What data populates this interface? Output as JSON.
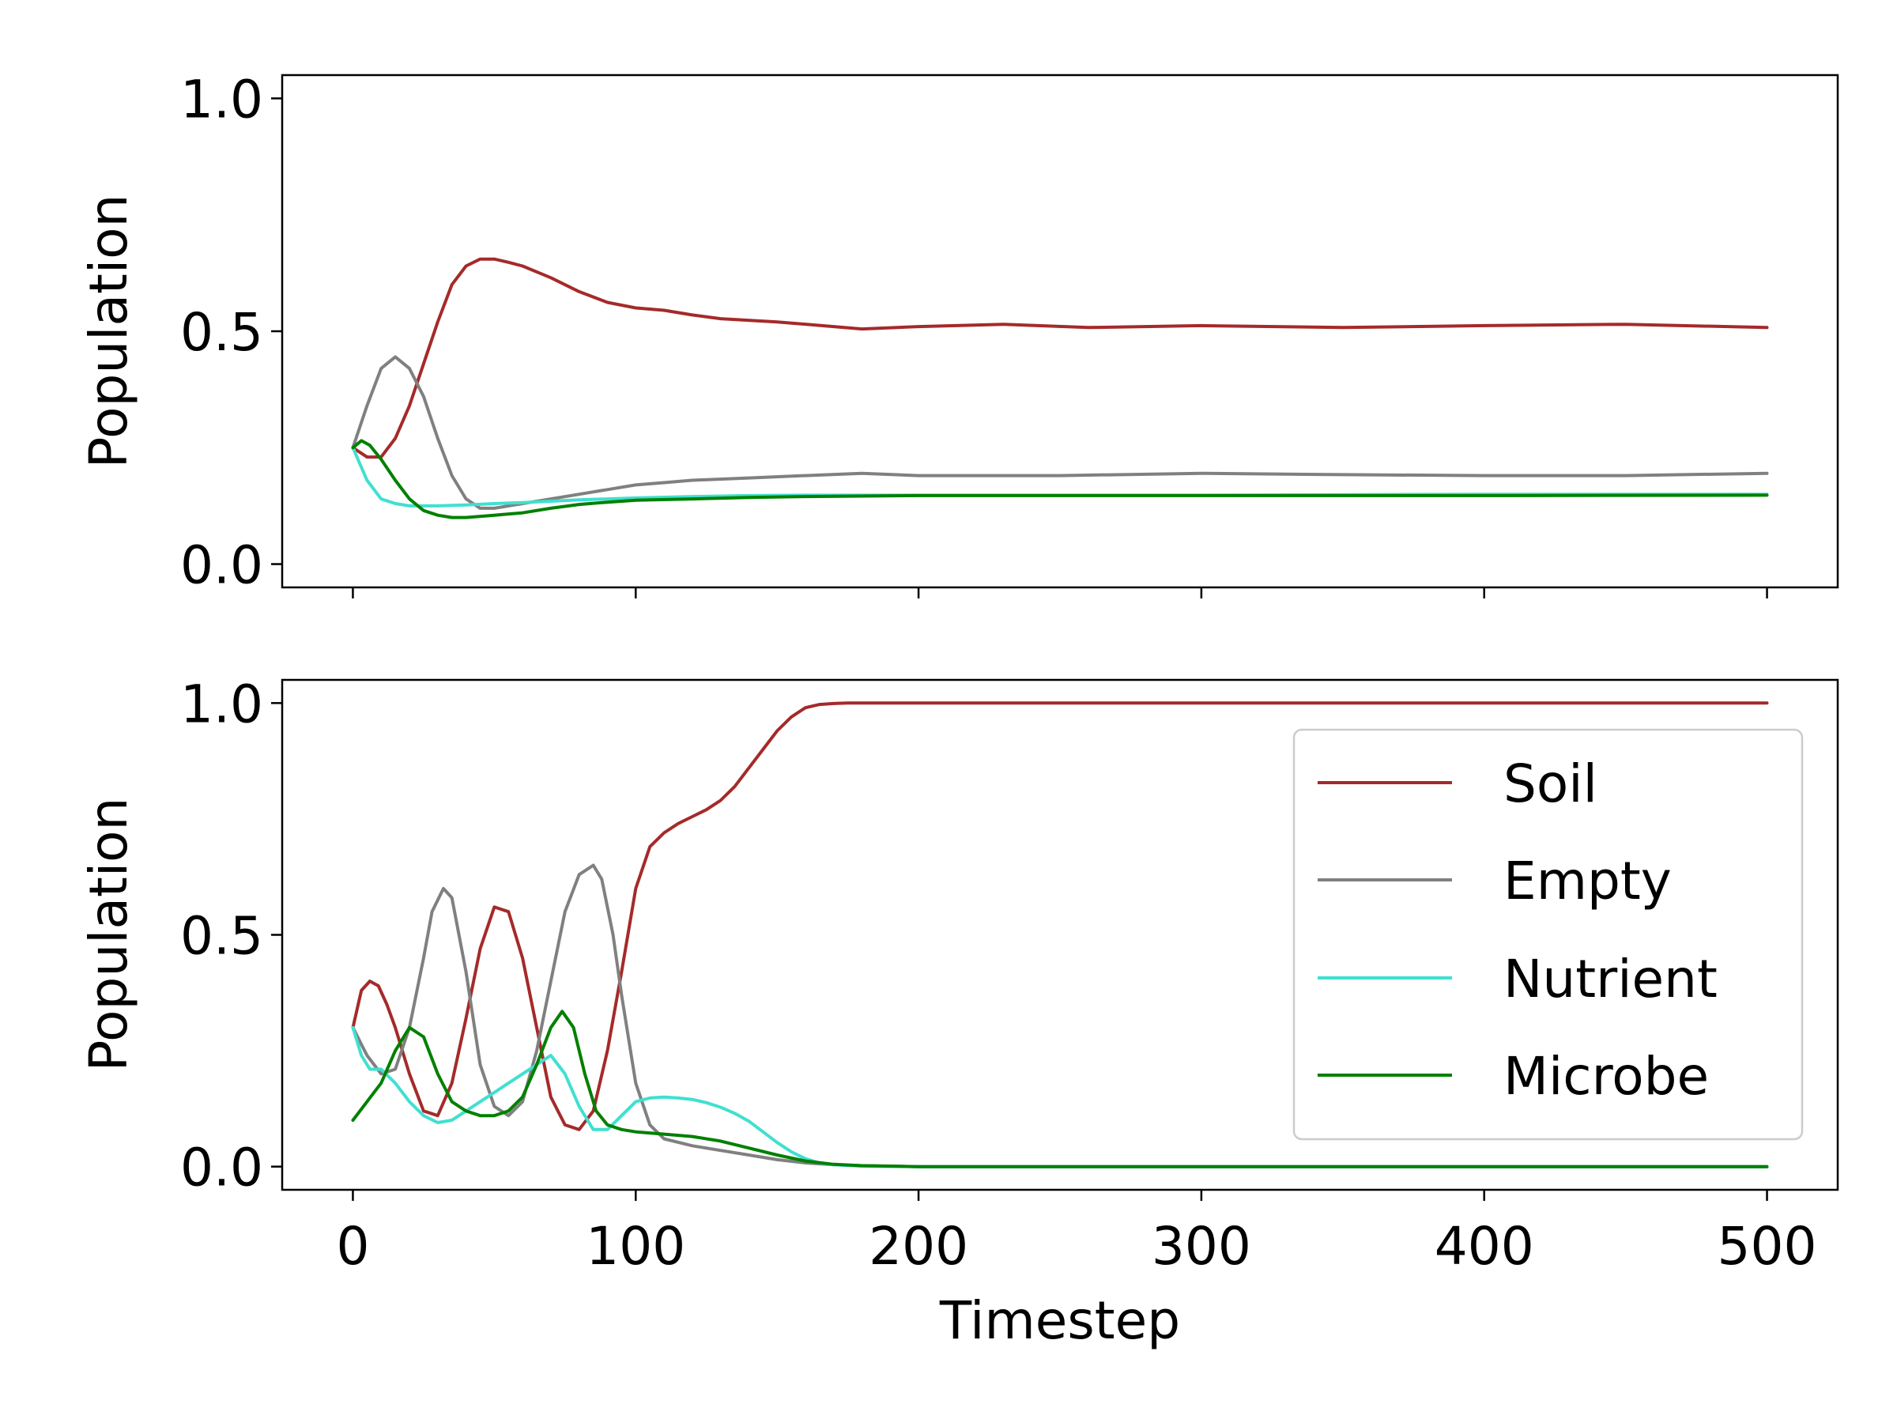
{
  "chart_data": [
    {
      "type": "line",
      "panel": "top",
      "title": "",
      "xlabel": "",
      "ylabel": "Population",
      "xlim": [
        -25,
        525
      ],
      "ylim": [
        -0.05,
        1.05
      ],
      "xticks": [
        0,
        100,
        200,
        300,
        400,
        500
      ],
      "xtick_labels_shown": false,
      "yticks": [
        0.0,
        0.5,
        1.0
      ],
      "ytick_labels": [
        "0.0",
        "0.5",
        "1.0"
      ],
      "grid": false,
      "legend": null,
      "series": [
        {
          "name": "Soil",
          "color": "#a52a2a",
          "x": [
            0,
            5,
            10,
            15,
            20,
            25,
            30,
            35,
            40,
            45,
            50,
            55,
            60,
            70,
            80,
            90,
            100,
            110,
            120,
            130,
            150,
            170,
            180,
            200,
            230,
            260,
            300,
            350,
            400,
            450,
            500
          ],
          "y": [
            0.25,
            0.23,
            0.23,
            0.27,
            0.34,
            0.43,
            0.52,
            0.6,
            0.64,
            0.655,
            0.655,
            0.648,
            0.64,
            0.615,
            0.585,
            0.562,
            0.55,
            0.545,
            0.535,
            0.527,
            0.52,
            0.51,
            0.505,
            0.51,
            0.515,
            0.508,
            0.512,
            0.508,
            0.512,
            0.515,
            0.508
          ]
        },
        {
          "name": "Empty",
          "color": "#808080",
          "x": [
            0,
            5,
            10,
            15,
            20,
            25,
            30,
            35,
            40,
            45,
            50,
            55,
            60,
            70,
            80,
            90,
            100,
            110,
            120,
            140,
            160,
            180,
            200,
            250,
            300,
            350,
            400,
            450,
            500
          ],
          "y": [
            0.25,
            0.34,
            0.42,
            0.445,
            0.42,
            0.36,
            0.27,
            0.19,
            0.14,
            0.12,
            0.12,
            0.125,
            0.13,
            0.14,
            0.15,
            0.16,
            0.17,
            0.175,
            0.18,
            0.185,
            0.19,
            0.195,
            0.19,
            0.19,
            0.195,
            0.192,
            0.19,
            0.19,
            0.195
          ]
        },
        {
          "name": "Nutrient",
          "color": "#40e0d0",
          "x": [
            0,
            5,
            10,
            15,
            20,
            30,
            40,
            50,
            60,
            70,
            80,
            100,
            120,
            140,
            160,
            200,
            300,
            400,
            500
          ],
          "y": [
            0.25,
            0.18,
            0.14,
            0.13,
            0.125,
            0.125,
            0.127,
            0.13,
            0.132,
            0.135,
            0.138,
            0.142,
            0.145,
            0.147,
            0.148,
            0.148,
            0.148,
            0.15,
            0.15
          ]
        },
        {
          "name": "Microbe",
          "color": "#008000",
          "x": [
            0,
            3,
            6,
            10,
            15,
            20,
            25,
            30,
            35,
            40,
            50,
            60,
            70,
            80,
            90,
            100,
            120,
            140,
            160,
            200,
            300,
            400,
            500
          ],
          "y": [
            0.25,
            0.265,
            0.255,
            0.225,
            0.18,
            0.14,
            0.115,
            0.105,
            0.1,
            0.1,
            0.105,
            0.11,
            0.12,
            0.128,
            0.133,
            0.137,
            0.14,
            0.143,
            0.145,
            0.147,
            0.147,
            0.147,
            0.148
          ]
        }
      ]
    },
    {
      "type": "line",
      "panel": "bottom",
      "title": "",
      "xlabel": "Timestep",
      "ylabel": "Population",
      "xlim": [
        -25,
        525
      ],
      "ylim": [
        -0.05,
        1.05
      ],
      "xticks": [
        0,
        100,
        200,
        300,
        400,
        500
      ],
      "xtick_labels": [
        "0",
        "100",
        "200",
        "300",
        "400",
        "500"
      ],
      "yticks": [
        0.0,
        0.5,
        1.0
      ],
      "ytick_labels": [
        "0.0",
        "0.5",
        "1.0"
      ],
      "grid": false,
      "legend": "upper-right",
      "series": [
        {
          "name": "Soil",
          "color": "#a52a2a",
          "x": [
            0,
            3,
            6,
            9,
            12,
            15,
            20,
            25,
            30,
            35,
            40,
            45,
            50,
            55,
            60,
            65,
            70,
            75,
            80,
            85,
            90,
            95,
            100,
            105,
            110,
            115,
            120,
            125,
            130,
            135,
            140,
            145,
            150,
            155,
            160,
            165,
            170,
            175,
            180,
            190,
            200,
            250,
            300,
            350,
            400,
            450,
            500
          ],
          "y": [
            0.3,
            0.38,
            0.4,
            0.39,
            0.35,
            0.3,
            0.2,
            0.12,
            0.11,
            0.18,
            0.32,
            0.47,
            0.56,
            0.55,
            0.45,
            0.3,
            0.15,
            0.09,
            0.08,
            0.12,
            0.25,
            0.42,
            0.6,
            0.69,
            0.72,
            0.74,
            0.755,
            0.77,
            0.79,
            0.82,
            0.86,
            0.9,
            0.94,
            0.97,
            0.99,
            0.997,
            0.999,
            1.0,
            1.0,
            1.0,
            1.0,
            1.0,
            1.0,
            1.0,
            1.0,
            1.0,
            1.0
          ]
        },
        {
          "name": "Empty",
          "color": "#808080",
          "x": [
            0,
            5,
            10,
            15,
            20,
            25,
            28,
            32,
            35,
            40,
            45,
            50,
            55,
            60,
            65,
            70,
            75,
            80,
            85,
            88,
            92,
            95,
            100,
            105,
            110,
            120,
            130,
            140,
            150,
            160,
            170,
            180,
            200,
            300,
            400,
            500
          ],
          "y": [
            0.3,
            0.24,
            0.2,
            0.21,
            0.3,
            0.45,
            0.55,
            0.6,
            0.58,
            0.42,
            0.22,
            0.13,
            0.11,
            0.14,
            0.25,
            0.4,
            0.55,
            0.63,
            0.65,
            0.62,
            0.5,
            0.37,
            0.18,
            0.09,
            0.06,
            0.045,
            0.035,
            0.025,
            0.015,
            0.008,
            0.004,
            0.002,
            0.0,
            0.0,
            0.0,
            0.0
          ]
        },
        {
          "name": "Nutrient",
          "color": "#40e0d0",
          "x": [
            0,
            3,
            6,
            10,
            15,
            20,
            25,
            30,
            35,
            40,
            45,
            50,
            55,
            60,
            65,
            70,
            75,
            80,
            85,
            90,
            95,
            100,
            105,
            110,
            115,
            120,
            125,
            130,
            135,
            140,
            145,
            150,
            155,
            160,
            165,
            170,
            180,
            200,
            300,
            400,
            500
          ],
          "y": [
            0.3,
            0.24,
            0.21,
            0.21,
            0.18,
            0.14,
            0.11,
            0.095,
            0.1,
            0.12,
            0.14,
            0.16,
            0.18,
            0.2,
            0.22,
            0.24,
            0.2,
            0.13,
            0.08,
            0.08,
            0.11,
            0.14,
            0.148,
            0.15,
            0.148,
            0.145,
            0.138,
            0.128,
            0.115,
            0.098,
            0.075,
            0.052,
            0.032,
            0.017,
            0.008,
            0.004,
            0.001,
            0.0,
            0.0,
            0.0,
            0.0
          ]
        },
        {
          "name": "Microbe",
          "color": "#008000",
          "x": [
            0,
            5,
            10,
            15,
            20,
            25,
            30,
            35,
            40,
            45,
            50,
            55,
            60,
            65,
            70,
            74,
            78,
            82,
            86,
            90,
            95,
            100,
            110,
            120,
            130,
            140,
            150,
            160,
            170,
            180,
            200,
            300,
            400,
            500
          ],
          "y": [
            0.1,
            0.14,
            0.18,
            0.25,
            0.3,
            0.28,
            0.2,
            0.14,
            0.12,
            0.11,
            0.11,
            0.12,
            0.15,
            0.22,
            0.3,
            0.335,
            0.3,
            0.2,
            0.12,
            0.09,
            0.08,
            0.075,
            0.07,
            0.065,
            0.055,
            0.04,
            0.025,
            0.012,
            0.005,
            0.002,
            0.0,
            0.0,
            0.0,
            0.0
          ]
        }
      ]
    }
  ]
}
